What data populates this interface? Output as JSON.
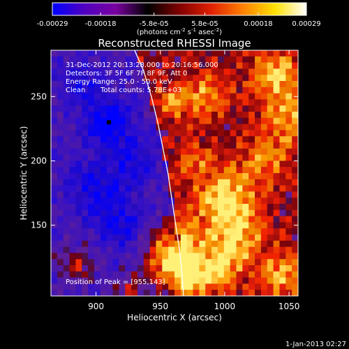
{
  "chart_data": {
    "type": "heatmap",
    "title": "Reconstructed RHESSI Image",
    "xlabel": "Heliocentric X (arcsec)",
    "ylabel": "Heliocentric Y (arcsec)",
    "xlim": [
      865,
      1057
    ],
    "ylim": [
      95,
      286
    ],
    "x_ticks": [
      900,
      950,
      1000,
      1050
    ],
    "y_ticks": [
      150,
      200,
      250
    ],
    "colorbar": {
      "range": [
        -0.00029,
        0.00029
      ],
      "tick_values": [
        -0.00029,
        -0.00018,
        -5.8e-05,
        5.8e-05,
        0.00018,
        0.00029
      ],
      "tick_labels": [
        "-0.00029",
        "-0.00018",
        "-5.8e-05",
        "5.8e-05",
        "0.00018",
        "0.00029"
      ],
      "unit_parts": [
        "(photons cm",
        "-2",
        " s",
        "-1",
        " asec",
        "-2",
        ")"
      ],
      "colors": [
        "#0000ff",
        "#5000c0",
        "#7a00a0",
        "#000000",
        "#800000",
        "#e02000",
        "#ff8000",
        "#ffe000",
        "#ffffff"
      ]
    },
    "annotations": [
      "31-Dec-2012 20:13:28.000 to 20:16:56.000",
      "Detectors: 3F 5F 6F 7F 8F 9F, Att 0",
      "Energy Range: 25.0 - 50.0 keV",
      "Clean",
      "Total counts: 5.78E+03"
    ],
    "peak_label": "Position of Peak = [955,143]",
    "peak": [
      955,
      143
    ],
    "limb_curve": [
      [
        930,
        286
      ],
      [
        937,
        270
      ],
      [
        943,
        250
      ],
      [
        948,
        230
      ],
      [
        952,
        210
      ],
      [
        956,
        190
      ],
      [
        959,
        170
      ],
      [
        962,
        150
      ],
      [
        965,
        130
      ],
      [
        967,
        110
      ],
      [
        968,
        95
      ]
    ],
    "hotspots": [
      {
        "x": 958,
        "y": 130,
        "v": 1.0,
        "r": 22
      },
      {
        "x": 965,
        "y": 110,
        "v": 0.85,
        "r": 18
      },
      {
        "x": 1000,
        "y": 170,
        "v": 0.8,
        "r": 22
      },
      {
        "x": 1010,
        "y": 140,
        "v": 0.65,
        "r": 20
      },
      {
        "x": 995,
        "y": 115,
        "v": 0.65,
        "r": 16
      },
      {
        "x": 1040,
        "y": 265,
        "v": 0.7,
        "r": 20
      },
      {
        "x": 1050,
        "y": 230,
        "v": 0.55,
        "r": 18
      },
      {
        "x": 985,
        "y": 250,
        "v": 0.55,
        "r": 16
      },
      {
        "x": 1030,
        "y": 200,
        "v": 0.5,
        "r": 18
      },
      {
        "x": 960,
        "y": 245,
        "v": 0.45,
        "r": 14
      },
      {
        "x": 885,
        "y": 120,
        "v": 0.55,
        "r": 14
      },
      {
        "x": 1045,
        "y": 110,
        "v": 0.6,
        "r": 18
      },
      {
        "x": 975,
        "y": 200,
        "v": 0.4,
        "r": 14
      },
      {
        "x": 925,
        "y": 100,
        "v": 0.45,
        "r": 12
      }
    ],
    "coldspots": [
      {
        "x": 910,
        "y": 230,
        "v": -0.85,
        "r": 18
      },
      {
        "x": 900,
        "y": 180,
        "v": -0.55,
        "r": 22
      },
      {
        "x": 920,
        "y": 150,
        "v": -0.55,
        "r": 20
      },
      {
        "x": 890,
        "y": 260,
        "v": -0.45,
        "r": 16
      },
      {
        "x": 930,
        "y": 200,
        "v": -0.45,
        "r": 18
      }
    ]
  },
  "footer": {
    "date": "1-Jan-2013 02:27"
  }
}
